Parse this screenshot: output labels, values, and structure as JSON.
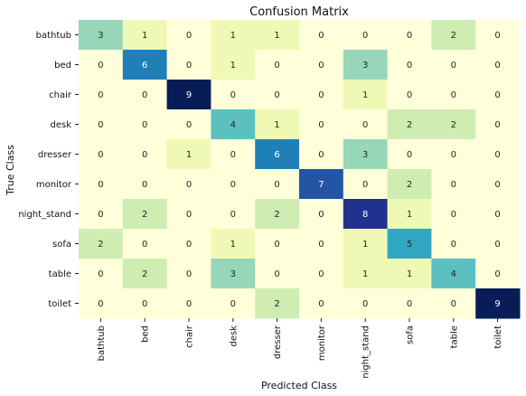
{
  "chart_data": {
    "type": "heatmap",
    "title": "Confusion Matrix",
    "xlabel": "Predicted Class",
    "ylabel": "True Class",
    "x_categories": [
      "bathtub",
      "bed",
      "chair",
      "desk",
      "dresser",
      "monitor",
      "night_stand",
      "sofa",
      "table",
      "toilet"
    ],
    "y_categories": [
      "bathtub",
      "bed",
      "chair",
      "desk",
      "dresser",
      "monitor",
      "night_stand",
      "sofa",
      "table",
      "toilet"
    ],
    "values": [
      [
        3,
        1,
        0,
        1,
        1,
        0,
        0,
        0,
        2,
        0
      ],
      [
        0,
        6,
        0,
        1,
        0,
        0,
        3,
        0,
        0,
        0
      ],
      [
        0,
        0,
        9,
        0,
        0,
        0,
        1,
        0,
        0,
        0
      ],
      [
        0,
        0,
        0,
        4,
        1,
        0,
        0,
        2,
        2,
        0
      ],
      [
        0,
        0,
        1,
        0,
        6,
        0,
        3,
        0,
        0,
        0
      ],
      [
        0,
        0,
        0,
        0,
        0,
        7,
        0,
        2,
        0,
        0
      ],
      [
        0,
        2,
        0,
        0,
        2,
        0,
        8,
        1,
        0,
        0
      ],
      [
        2,
        0,
        0,
        1,
        0,
        0,
        1,
        5,
        0,
        0
      ],
      [
        0,
        2,
        0,
        3,
        0,
        0,
        1,
        1,
        4,
        0
      ],
      [
        0,
        0,
        0,
        0,
        2,
        0,
        0,
        0,
        0,
        9
      ]
    ],
    "value_range": [
      0,
      9
    ],
    "colormap": "YlGnBu",
    "colorbar": false,
    "grid": false,
    "legend": "none"
  }
}
